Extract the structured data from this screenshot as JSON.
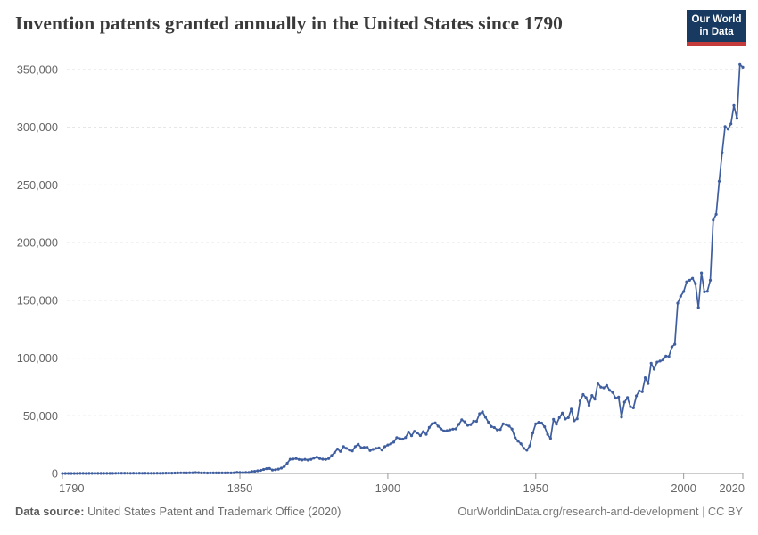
{
  "header": {
    "title": "Invention patents granted annually in the United States since 1790",
    "logo": {
      "line1": "Our World",
      "line2": "in Data"
    }
  },
  "footer": {
    "datasource_label": "Data source:",
    "datasource_value": " United States Patent and Trademark Office (2020)",
    "link": "OurWorldinData.org/research-and-development",
    "separator": " | ",
    "license": "CC BY"
  },
  "chart_data": {
    "type": "line",
    "title": "Invention patents granted annually in the United States since 1790",
    "xlabel": "",
    "ylabel": "",
    "xlim": [
      1790,
      2020
    ],
    "ylim": [
      0,
      350000
    ],
    "xticks": [
      1790,
      1850,
      1900,
      1950,
      2000,
      2020
    ],
    "xtick_labels": [
      "1790",
      "1850",
      "1900",
      "1950",
      "2000",
      "2020"
    ],
    "yticks": [
      0,
      50000,
      100000,
      150000,
      200000,
      250000,
      300000,
      350000
    ],
    "ytick_labels": [
      "0",
      "50,000",
      "100,000",
      "150,000",
      "200,000",
      "250,000",
      "300,000",
      "350,000"
    ],
    "grid": "horizontal-dashed",
    "legend": "none",
    "marker": "circle",
    "line_color": "#3f5e9f",
    "grid_color": "#dddddd",
    "axis_color": "#999999",
    "series_name": "Invention patents granted annually, United States",
    "x_start": 1790,
    "x_end": 2020,
    "values": [
      3,
      33,
      11,
      20,
      22,
      12,
      44,
      51,
      28,
      44,
      41,
      44,
      65,
      97,
      84,
      57,
      63,
      99,
      158,
      203,
      223,
      215,
      238,
      181,
      210,
      173,
      206,
      174,
      222,
      156,
      155,
      168,
      200,
      173,
      228,
      304,
      323,
      331,
      368,
      447,
      544,
      573,
      474,
      586,
      630,
      752,
      702,
      426,
      514,
      404,
      458,
      490,
      488,
      493,
      478,
      473,
      566,
      495,
      583,
      984,
      883,
      752,
      885,
      844,
      1755,
      1881,
      2302,
      2674,
      3455,
      4160,
      4357,
      3020,
      3214,
      3773,
      4630,
      6088,
      8863,
      12277,
      12526,
      12931,
      12137,
      11659,
      12180,
      11616,
      12230,
      13291,
      14169,
      12920,
      12345,
      12125,
      12903,
      15500,
      18091,
      21162,
      19118,
      23285,
      21767,
      20403,
      19551,
      23324,
      25313,
      22312,
      22647,
      22750,
      19855,
      20856,
      21822,
      22067,
      20377,
      23278,
      24644,
      25546,
      27119,
      31029,
      30258,
      29775,
      31170,
      35859,
      32735,
      36561,
      35141,
      32856,
      36198,
      33917,
      39892,
      43118,
      43892,
      40935,
      38452,
      36797,
      37060,
      37798,
      38369,
      38616,
      42574,
      46432,
      44733,
      41717,
      42357,
      45267,
      45226,
      51756,
      53458,
      48774,
      44420,
      40618,
      39782,
      37683,
      38061,
      43073,
      42238,
      41109,
      38449,
      31054,
      28053,
      25695,
      21803,
      20139,
      23963,
      35131,
      43040,
      44326,
      43616,
      40468,
      33809,
      30432,
      46817,
      42744,
      48330,
      52408,
      47170,
      48368,
      55691,
      45679,
      47375,
      62857,
      68405,
      65652,
      59103,
      67559,
      64429,
      78316,
      74810,
      74143,
      76278,
      71994,
      70226,
      65269,
      66102,
      48854,
      61819,
      65771,
      57888,
      56860,
      67200,
      71661,
      70860,
      82952,
      77924,
      95537,
      90365,
      96511,
      97444,
      98342,
      101676,
      101419,
      109645,
      111984,
      147518,
      153486,
      157595,
      166038,
      167331,
      169028,
      164291,
      143806,
      173772,
      157282,
      157772,
      167349,
      219614,
      224505,
      253155,
      277835,
      300678,
      298407,
      303049,
      318829,
      307759,
      354430,
      351993
    ]
  }
}
